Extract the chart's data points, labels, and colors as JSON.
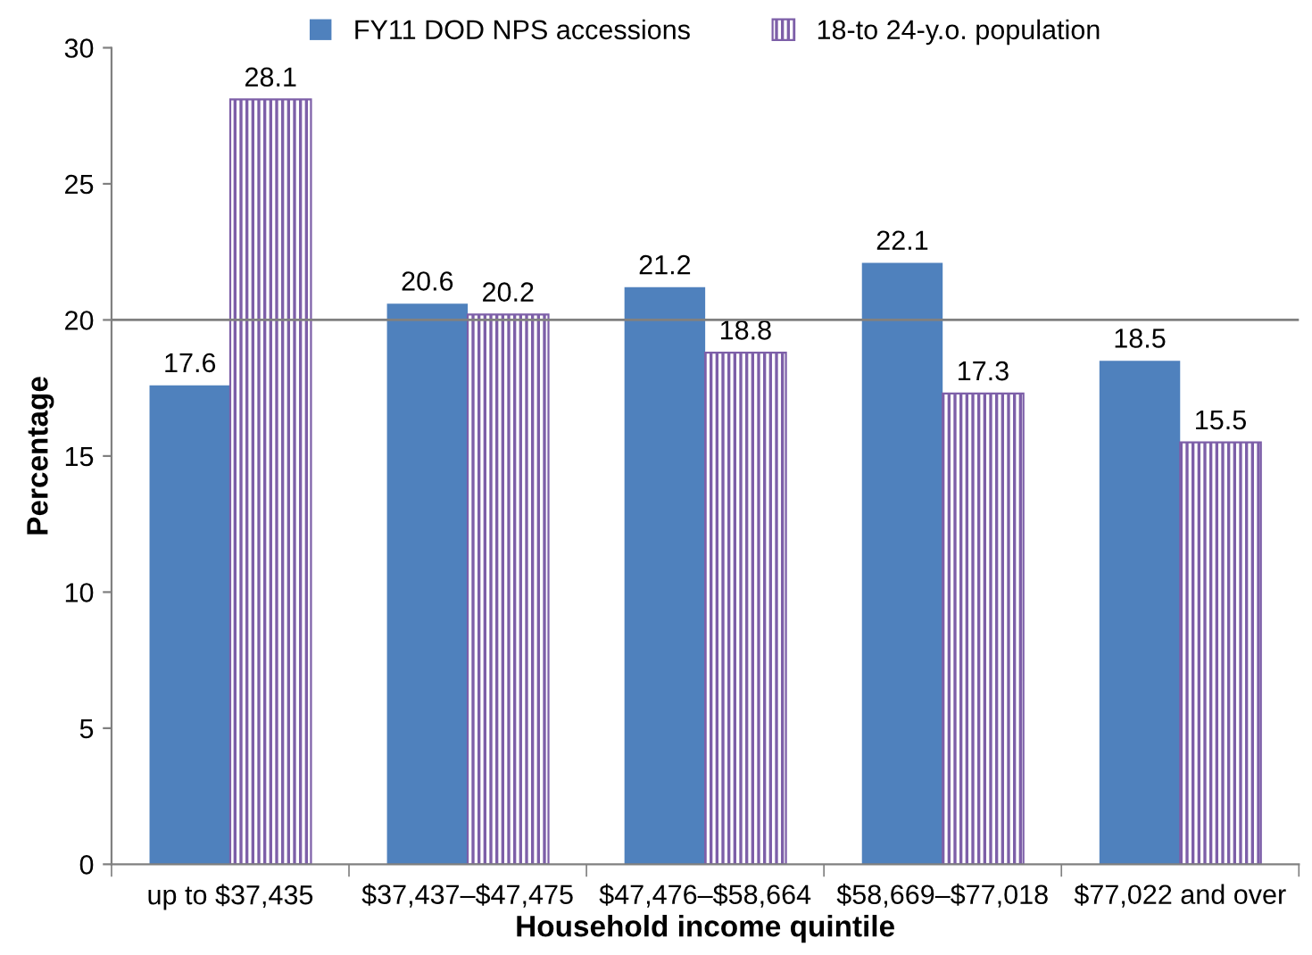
{
  "chart_data": {
    "type": "bar",
    "xlabel": "Household income quintile",
    "ylabel": "Percentage",
    "categories": [
      "up to $37,435",
      "$37,437–$47,475",
      "$47,476–$58,664",
      "$58,669–$77,018",
      "$77,022 and over"
    ],
    "series": [
      {
        "name": "FY11 DOD NPS accessions",
        "color": "#4f81bd",
        "values": [
          17.6,
          20.6,
          21.2,
          22.1,
          18.5
        ]
      },
      {
        "name": "18-to 24-y.o. population",
        "color": "#7d5fa8",
        "values": [
          28.1,
          20.2,
          18.8,
          17.3,
          15.5
        ]
      }
    ],
    "ylim": [
      0,
      30
    ],
    "yticks": [
      0,
      5,
      10,
      15,
      20,
      25,
      30
    ],
    "ref_lines": [
      {
        "axis": "y",
        "value": 20,
        "label": null,
        "color": "#808080"
      }
    ],
    "data_labels": true,
    "grid": false,
    "legend": "top"
  }
}
